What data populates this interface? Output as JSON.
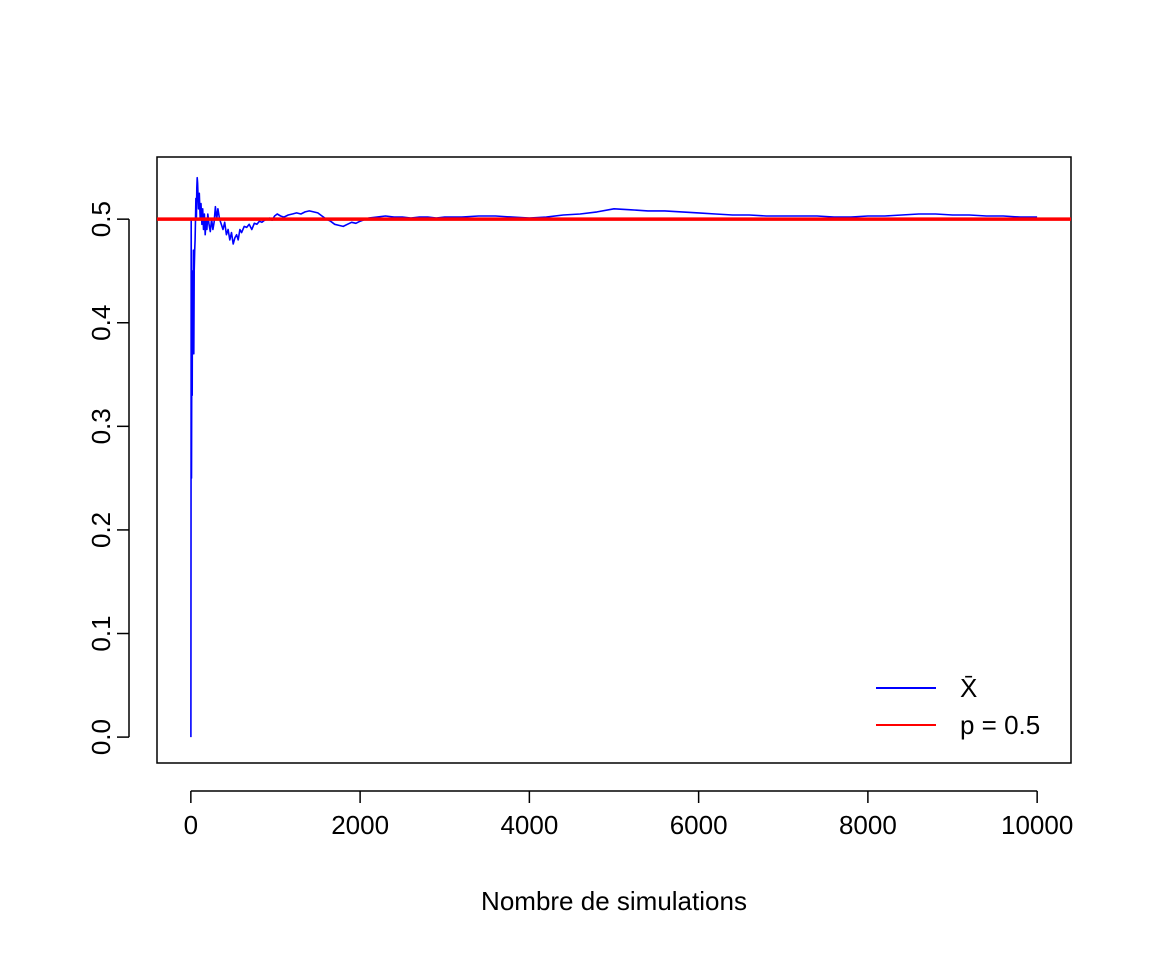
{
  "chart_data": {
    "type": "line",
    "title": "",
    "xlabel": "Nombre de simulations",
    "ylabel": "",
    "xlim": [
      -400,
      10400
    ],
    "ylim": [
      -0.025,
      0.56
    ],
    "xticks": [
      0,
      2000,
      4000,
      6000,
      8000,
      10000
    ],
    "yticks": [
      0.0,
      0.1,
      0.2,
      0.3,
      0.4,
      0.5
    ],
    "xtick_labels": [
      "0",
      "2000",
      "4000",
      "6000",
      "8000",
      "10000"
    ],
    "ytick_labels": [
      "0.0",
      "0.1",
      "0.2",
      "0.3",
      "0.4",
      "0.5"
    ],
    "grid": false,
    "legend_position": "bottom-right",
    "series": [
      {
        "name": "X̄",
        "color": "#0000ff",
        "x": [
          1,
          4,
          8,
          12,
          16,
          20,
          25,
          30,
          35,
          40,
          45,
          50,
          55,
          60,
          65,
          70,
          75,
          80,
          90,
          100,
          110,
          120,
          130,
          140,
          150,
          160,
          170,
          180,
          190,
          200,
          215,
          230,
          245,
          260,
          275,
          290,
          305,
          320,
          340,
          360,
          380,
          400,
          420,
          440,
          460,
          480,
          500,
          520,
          540,
          560,
          580,
          600,
          630,
          660,
          690,
          720,
          750,
          780,
          810,
          840,
          870,
          900,
          930,
          960,
          990,
          1020,
          1060,
          1100,
          1150,
          1200,
          1250,
          1300,
          1350,
          1400,
          1450,
          1500,
          1550,
          1600,
          1650,
          1700,
          1750,
          1800,
          1850,
          1900,
          1950,
          2000,
          2100,
          2200,
          2300,
          2400,
          2500,
          2600,
          2700,
          2800,
          2900,
          3000,
          3200,
          3400,
          3600,
          3800,
          4000,
          4200,
          4400,
          4600,
          4800,
          5000,
          5200,
          5400,
          5600,
          5800,
          6000,
          6200,
          6400,
          6600,
          6800,
          7000,
          7200,
          7400,
          7600,
          7800,
          8000,
          8200,
          8400,
          8600,
          8800,
          9000,
          9200,
          9400,
          9600,
          9800,
          10000
        ],
        "values": [
          0.0,
          0.5,
          0.25,
          0.42,
          0.33,
          0.45,
          0.4,
          0.47,
          0.37,
          0.45,
          0.47,
          0.48,
          0.5,
          0.52,
          0.5,
          0.53,
          0.54,
          0.535,
          0.51,
          0.525,
          0.5,
          0.515,
          0.495,
          0.51,
          0.49,
          0.505,
          0.485,
          0.5,
          0.49,
          0.505,
          0.495,
          0.488,
          0.5,
          0.49,
          0.497,
          0.512,
          0.5,
          0.51,
          0.5,
          0.495,
          0.49,
          0.497,
          0.485,
          0.49,
          0.48,
          0.487,
          0.476,
          0.482,
          0.485,
          0.48,
          0.49,
          0.487,
          0.493,
          0.492,
          0.495,
          0.49,
          0.496,
          0.495,
          0.498,
          0.497,
          0.499,
          0.5,
          0.501,
          0.499,
          0.503,
          0.505,
          0.503,
          0.502,
          0.504,
          0.505,
          0.506,
          0.505,
          0.507,
          0.508,
          0.507,
          0.506,
          0.503,
          0.5,
          0.498,
          0.495,
          0.494,
          0.493,
          0.495,
          0.497,
          0.496,
          0.498,
          0.501,
          0.502,
          0.503,
          0.502,
          0.502,
          0.501,
          0.502,
          0.502,
          0.501,
          0.502,
          0.502,
          0.503,
          0.503,
          0.502,
          0.501,
          0.502,
          0.504,
          0.505,
          0.507,
          0.51,
          0.509,
          0.508,
          0.508,
          0.507,
          0.506,
          0.505,
          0.504,
          0.504,
          0.503,
          0.503,
          0.503,
          0.503,
          0.502,
          0.502,
          0.503,
          0.503,
          0.504,
          0.505,
          0.505,
          0.504,
          0.504,
          0.503,
          0.503,
          0.502,
          0.502
        ]
      },
      {
        "name": "p = 0.5",
        "color": "#ff0000",
        "type": "hline",
        "y": 0.5
      }
    ]
  }
}
